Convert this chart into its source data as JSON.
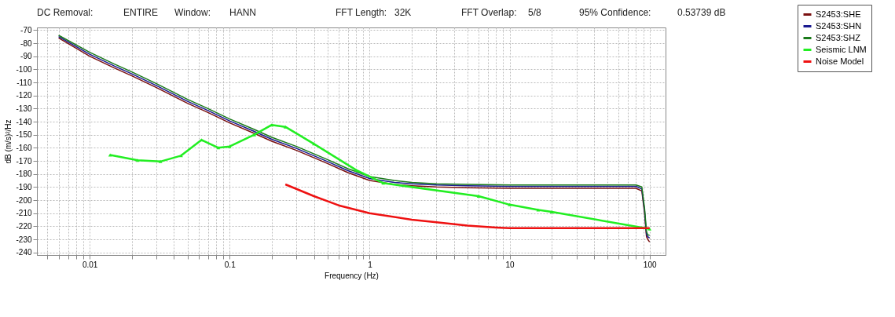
{
  "chart_data": {
    "type": "line",
    "xlabel": "Frequency (Hz)",
    "ylabel": "dB (m/s)²/Hz",
    "log": "x",
    "grid": true,
    "legend": "right",
    "annotations": [
      "DC Removal:",
      "ENTIRE",
      "Window:",
      "HANN",
      "FFT Length:",
      "32K",
      "FFT Overlap:",
      "5/8",
      "95% Confidence:",
      "0.53739 dB"
    ],
    "xlim": [
      0.0042,
      130
    ],
    "ylim": [
      -242,
      -68
    ],
    "xticks": [
      {
        "value": 0.005,
        "label": null
      },
      {
        "value": 0.006,
        "label": null
      },
      {
        "value": 0.007,
        "label": null
      },
      {
        "value": 0.008,
        "label": null
      },
      {
        "value": 0.009,
        "label": null
      },
      0.01,
      {
        "value": 0.02,
        "label": null
      },
      {
        "value": 0.03,
        "label": null
      },
      {
        "value": 0.04,
        "label": null
      },
      {
        "value": 0.05,
        "label": null
      },
      {
        "value": 0.06,
        "label": null
      },
      {
        "value": 0.07,
        "label": null
      },
      {
        "value": 0.08,
        "label": null
      },
      {
        "value": 0.09,
        "label": null
      },
      0.1,
      {
        "value": 0.2,
        "label": null
      },
      {
        "value": 0.3,
        "label": null
      },
      {
        "value": 0.4,
        "label": null
      },
      {
        "value": 0.5,
        "label": null
      },
      {
        "value": 0.6,
        "label": null
      },
      {
        "value": 0.7,
        "label": null
      },
      {
        "value": 0.8,
        "label": null
      },
      {
        "value": 0.9,
        "label": null
      },
      1,
      {
        "value": 2,
        "label": null
      },
      {
        "value": 3,
        "label": null
      },
      {
        "value": 4,
        "label": null
      },
      {
        "value": 5,
        "label": null
      },
      {
        "value": 6,
        "label": null
      },
      {
        "value": 7,
        "label": null
      },
      {
        "value": 8,
        "label": null
      },
      {
        "value": 9,
        "label": null
      },
      10,
      {
        "value": 20,
        "label": null
      },
      {
        "value": 30,
        "label": null
      },
      {
        "value": 40,
        "label": null
      },
      {
        "value": 50,
        "label": null
      },
      {
        "value": 60,
        "label": null
      },
      {
        "value": 70,
        "label": null
      },
      {
        "value": 80,
        "label": null
      },
      {
        "value": 90,
        "label": null
      },
      100
    ],
    "yticks": [
      -240,
      -230,
      -220,
      -210,
      -200,
      -190,
      -180,
      -170,
      -160,
      -150,
      -140,
      -130,
      -120,
      -110,
      -100,
      -90,
      -80,
      -70
    ],
    "series": [
      {
        "name": "S2453:SHE",
        "color": "#7a1010",
        "x": [
          0.006,
          0.01,
          0.015,
          0.02,
          0.03,
          0.05,
          0.07,
          0.1,
          0.15,
          0.2,
          0.3,
          0.5,
          0.7,
          1,
          1.5,
          2,
          3,
          5,
          10,
          20,
          50,
          80,
          88,
          92,
          95,
          97,
          100
        ],
        "values": [
          -76,
          -90,
          -99,
          -105,
          -114,
          -126,
          -133,
          -141,
          -149,
          -155,
          -162,
          -172,
          -179,
          -185,
          -188,
          -189,
          -190,
          -190.5,
          -191,
          -191,
          -191,
          -191,
          -193,
          -210,
          -228,
          -230,
          -232
        ]
      },
      {
        "name": "S2453:SHN",
        "color": "#1a1a90",
        "x": [
          0.006,
          0.01,
          0.015,
          0.02,
          0.03,
          0.05,
          0.07,
          0.1,
          0.15,
          0.2,
          0.3,
          0.5,
          0.7,
          1,
          1.5,
          2,
          3,
          5,
          10,
          20,
          50,
          80,
          88,
          92,
          95,
          97,
          100
        ],
        "values": [
          -75,
          -88.5,
          -97.5,
          -103.5,
          -112.5,
          -124.5,
          -131.5,
          -139.5,
          -147.5,
          -153.5,
          -160.5,
          -170.5,
          -177.5,
          -183.5,
          -186.5,
          -187.5,
          -188.5,
          -189,
          -189.5,
          -189.5,
          -189.5,
          -189.5,
          -191.5,
          -208,
          -226,
          -228,
          -229
        ]
      },
      {
        "name": "S2453:SHZ",
        "color": "#1a7a1a",
        "x": [
          0.006,
          0.01,
          0.015,
          0.02,
          0.03,
          0.05,
          0.07,
          0.1,
          0.15,
          0.2,
          0.3,
          0.5,
          0.7,
          1,
          1.5,
          2,
          3,
          5,
          10,
          20,
          50,
          80,
          88,
          92,
          95,
          97,
          100
        ],
        "values": [
          -74,
          -87,
          -96,
          -102,
          -111,
          -123,
          -130,
          -138,
          -146,
          -152,
          -159,
          -169,
          -176,
          -182,
          -185,
          -186.5,
          -187.5,
          -188,
          -188.5,
          -188.5,
          -188.5,
          -188.5,
          -190,
          -206,
          -224,
          -226.5,
          -227
        ]
      },
      {
        "name": "Seismic LNM",
        "color": "#22ee22",
        "marker": "triangle",
        "x": [
          0.014,
          0.022,
          0.032,
          0.045,
          0.063,
          0.083,
          0.1,
          0.15,
          0.2,
          0.25,
          0.4,
          0.8,
          1.25,
          6,
          10,
          16,
          20,
          100
        ],
        "values": [
          -165.5,
          -169.5,
          -170.5,
          -166,
          -154,
          -160,
          -159,
          -150,
          -142.5,
          -144,
          -157,
          -177,
          -187,
          -197,
          -203.5,
          -207.5,
          -209,
          -222
        ]
      },
      {
        "name": "Noise Model",
        "color": "#ee1111",
        "x": [
          0.25,
          0.4,
          0.6,
          1,
          2,
          3,
          5,
          8,
          10,
          100
        ],
        "values": [
          -188,
          -197,
          -204,
          -210,
          -215,
          -217,
          -219.5,
          -221,
          -221.5,
          -221.5
        ]
      }
    ]
  }
}
